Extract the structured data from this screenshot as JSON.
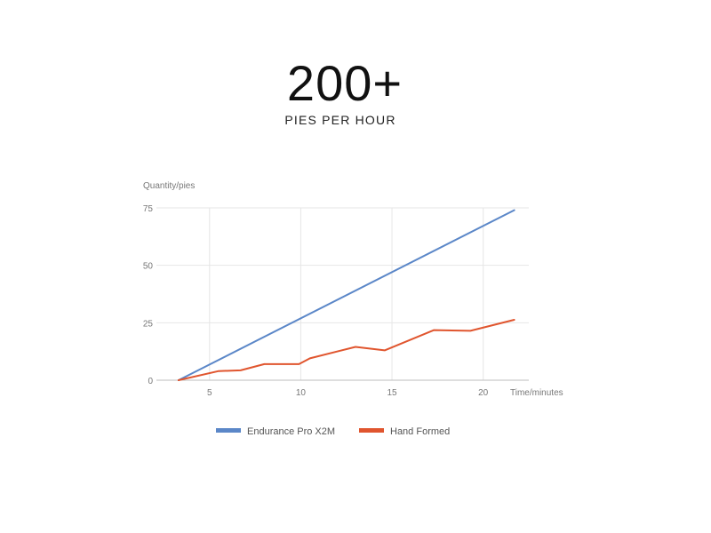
{
  "header": {
    "headline": "200+",
    "subheadline": "PIES PER HOUR"
  },
  "chart_data": {
    "type": "line",
    "ylabel": "Quantity/pies",
    "xlabel": "Time/minutes",
    "xlim": [
      1.6,
      22.5
    ],
    "ylim": [
      0,
      75
    ],
    "x_ticks": [
      5,
      10,
      15,
      20
    ],
    "y_ticks": [
      0,
      25,
      50,
      75
    ],
    "grid": true,
    "legend_position": "bottom",
    "series": [
      {
        "name": "Endurance Pro X2M",
        "color": "#5b87c8",
        "points": [
          [
            3.3,
            0
          ],
          [
            21.7,
            74
          ]
        ]
      },
      {
        "name": "Hand Formed",
        "color": "#e0552e",
        "points": [
          [
            3.3,
            0
          ],
          [
            5.5,
            4
          ],
          [
            6.7,
            4.3
          ],
          [
            8.0,
            7
          ],
          [
            9.9,
            7
          ],
          [
            10.5,
            9.5
          ],
          [
            13.0,
            14.5
          ],
          [
            14.6,
            13
          ],
          [
            17.3,
            21.8
          ],
          [
            19.3,
            21.5
          ],
          [
            21.7,
            26.3
          ]
        ]
      }
    ]
  }
}
